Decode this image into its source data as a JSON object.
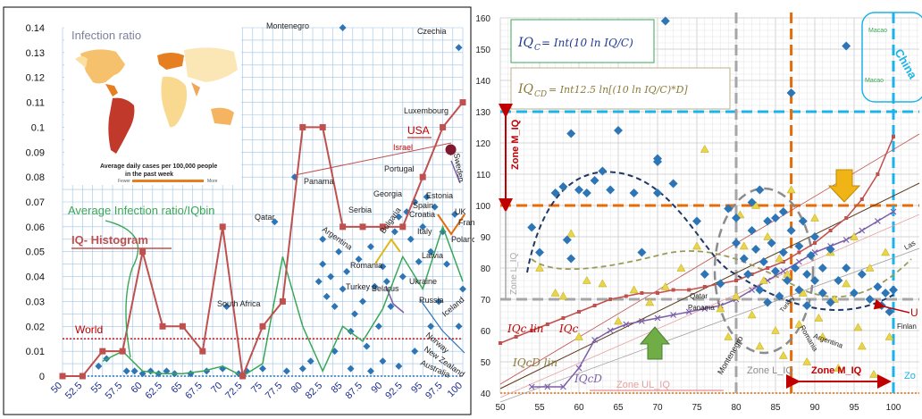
{
  "colors": {
    "iq_histogram": "#c0504d",
    "average_ratio": "#3aa757",
    "points": "#2e75b6",
    "world_line": "#c00000",
    "gold": "#e2b714",
    "orange_dash": "#e46c0a",
    "blue_dash": "#1cb4e8",
    "gray_dash": "#a6a6a6",
    "purple": "#7b5ea7"
  },
  "chart_data": [
    {
      "type": "line",
      "panel": "left",
      "xlim": [
        50,
        100
      ],
      "ylim": [
        0,
        0.14
      ],
      "x_ticks": [
        "50",
        "52.5",
        "55",
        "57.5",
        "60",
        "62.5",
        "65",
        "67.5",
        "70",
        "72.5",
        "75",
        "77.5",
        "80",
        "82.5",
        "85",
        "87.5",
        "90",
        "92.5",
        "95",
        "97.5",
        "100"
      ],
      "y_ticks": [
        "0",
        "0.01",
        "0.02",
        "0.03",
        "0.04",
        "0.05",
        "0.06",
        "0.07",
        "0.08",
        "0.09",
        "0.1",
        "0.11",
        "0.12",
        "0.13",
        "0.14"
      ],
      "grid": true,
      "series": [
        {
          "name": "IQ- Histogram",
          "x": [
            50,
            52.5,
            55,
            57.5,
            60,
            62.5,
            65,
            67.5,
            70,
            72.5,
            75,
            77.5,
            80,
            82.5,
            85,
            87.5,
            90,
            92.5,
            95,
            97.5,
            100
          ],
          "values": [
            0,
            0,
            0.01,
            0.01,
            0.05,
            0.02,
            0.02,
            0.01,
            0.06,
            0,
            0.02,
            0.03,
            0.1,
            0.1,
            0.06,
            0.06,
            0.06,
            0.06,
            0.08,
            0.1,
            0.11
          ]
        },
        {
          "name": "Average Infection ratio/IQbin",
          "x": [
            55,
            57.5,
            60,
            62.5,
            65,
            67.5,
            70,
            72.5,
            75,
            77.5,
            80,
            82.5,
            85,
            87.5,
            90,
            92.5,
            95,
            97.5,
            100
          ],
          "values": [
            0.006,
            0.01,
            0.002,
            0.001,
            0.001,
            0.002,
            0.004,
            0,
            0.005,
            0.048,
            0.02,
            0.002,
            0.02,
            0.014,
            0.027,
            0.048,
            0.035,
            0.06,
            0.038
          ]
        },
        {
          "name": "World",
          "x": [
            50,
            100
          ],
          "values": [
            0.015,
            0.015
          ]
        }
      ],
      "points": [
        {
          "x": 54.5,
          "y": 0.004
        },
        {
          "x": 55.5,
          "y": 0.007
        },
        {
          "x": 58,
          "y": 0.002
        },
        {
          "x": 59,
          "y": 0.002
        },
        {
          "x": 60,
          "y": 0.001
        },
        {
          "x": 61,
          "y": 0.002
        },
        {
          "x": 62,
          "y": 0.001
        },
        {
          "x": 63,
          "y": 0.002
        },
        {
          "x": 64,
          "y": 0.001
        },
        {
          "x": 66,
          "y": 0.001
        },
        {
          "x": 68,
          "y": 0.002
        },
        {
          "x": 70,
          "y": 0.003
        },
        {
          "x": 70.5,
          "y": 0.028
        },
        {
          "x": 72,
          "y": 0.001
        },
        {
          "x": 73,
          "y": 0.002
        },
        {
          "x": 75,
          "y": 0.003
        },
        {
          "x": 76.5,
          "y": 0.062
        },
        {
          "x": 78,
          "y": 0.002
        },
        {
          "x": 79,
          "y": 0.08
        },
        {
          "x": 80,
          "y": 0.003
        },
        {
          "x": 81,
          "y": 0.006
        },
        {
          "x": 82,
          "y": 0.038
        },
        {
          "x": 82.5,
          "y": 0.045
        },
        {
          "x": 83,
          "y": 0.032
        },
        {
          "x": 83.5,
          "y": 0.04
        },
        {
          "x": 84,
          "y": 0.028
        },
        {
          "x": 84.5,
          "y": 0.05
        },
        {
          "x": 85,
          "y": 0.035
        },
        {
          "x": 85.5,
          "y": 0.042
        },
        {
          "x": 86,
          "y": 0.018
        },
        {
          "x": 86.5,
          "y": 0.025
        },
        {
          "x": 87,
          "y": 0.047
        },
        {
          "x": 87.5,
          "y": 0.03
        },
        {
          "x": 88,
          "y": 0.012
        },
        {
          "x": 88.5,
          "y": 0.052
        },
        {
          "x": 89,
          "y": 0.036
        },
        {
          "x": 89.5,
          "y": 0.02
        },
        {
          "x": 90,
          "y": 0.044
        },
        {
          "x": 90.5,
          "y": 0.038
        },
        {
          "x": 91,
          "y": 0.028
        },
        {
          "x": 91.5,
          "y": 0.058
        },
        {
          "x": 92,
          "y": 0.064
        },
        {
          "x": 92.5,
          "y": 0.04
        },
        {
          "x": 93,
          "y": 0.066
        },
        {
          "x": 93.5,
          "y": 0.055
        },
        {
          "x": 94,
          "y": 0.07
        },
        {
          "x": 94.5,
          "y": 0.046
        },
        {
          "x": 95,
          "y": 0.06
        },
        {
          "x": 95.5,
          "y": 0.072
        },
        {
          "x": 96,
          "y": 0.05
        },
        {
          "x": 96.5,
          "y": 0.068
        },
        {
          "x": 97,
          "y": 0.03
        },
        {
          "x": 97.5,
          "y": 0.058
        },
        {
          "x": 98,
          "y": 0.045
        },
        {
          "x": 98.5,
          "y": 0.09
        },
        {
          "x": 99,
          "y": 0.065
        },
        {
          "x": 99.5,
          "y": 0.02
        },
        {
          "x": 100,
          "y": 0.035
        },
        {
          "x": 96,
          "y": 0.02
        },
        {
          "x": 94,
          "y": 0.01
        },
        {
          "x": 92,
          "y": 0.004
        },
        {
          "x": 90,
          "y": 0.006
        },
        {
          "x": 86,
          "y": 0.003
        },
        {
          "x": 84,
          "y": 0.01
        },
        {
          "x": 82.5,
          "y": 0.055
        },
        {
          "x": 88.5,
          "y": 0.002
        },
        {
          "x": 85,
          "y": 0.14
        },
        {
          "x": 99.5,
          "y": 0.132
        }
      ],
      "labels": {
        "map_title": "Infection ratio",
        "map_caption_1": "Average daily cases per 100,000 people",
        "map_caption_2": "in the past week",
        "map_legend_low": "Fewer",
        "map_legend_high": "More",
        "average_label": "Average Infection ratio/IQbin",
        "histogram_label": "IQ- Histogram",
        "world_label": "World",
        "usa_label": "USA",
        "israel_label": "Israel",
        "countries": {
          "montenegro": "Montenegro",
          "czechia": "Czechia",
          "luxembourg": "Luxembourg",
          "sweden": "Sweden",
          "portugal": "Portugal",
          "panama": "Panama",
          "georgia": "Georgia",
          "estonia": "Estonia",
          "spain": "Spain",
          "croatia": "Croatia",
          "uk": "UK",
          "france": "Franc",
          "serbia": "Serbia",
          "qatar": "Qatar",
          "argentina": "Argentina",
          "bulgaria": "Bulgaria",
          "italy": "Italy",
          "poland": "Polanc",
          "latvia": "Latvia",
          "romania": "Romania",
          "turkey": "Turkey",
          "belarus": "Belarus",
          "ukraine": "Ukraine",
          "russia": "Russia",
          "south_africa": "South Africa",
          "iceland": "Iceland",
          "norway": "Norway",
          "new_zealand": "New Zealand",
          "australia": "Australia"
        }
      }
    },
    {
      "type": "scatter",
      "panel": "right",
      "xlim": [
        50,
        100
      ],
      "ylim": [
        40,
        160
      ],
      "x_ticks": [
        "50",
        "55",
        "60",
        "65",
        "70",
        "75",
        "80",
        "85",
        "90",
        "95",
        "100"
      ],
      "y_ticks": [
        "40",
        "50",
        "60",
        "70",
        "80",
        "90",
        "100",
        "110",
        "120",
        "130",
        "140",
        "150",
        "160"
      ],
      "grid": true,
      "series": [
        {
          "name": "IQ_C",
          "x": [
            50,
            52,
            54,
            56,
            58,
            60,
            62,
            64,
            66,
            68,
            70,
            72,
            74,
            76,
            78,
            80,
            82,
            84,
            86,
            88,
            90,
            92,
            94,
            96,
            98,
            100
          ],
          "values": [
            56,
            58,
            60,
            62,
            64,
            66,
            68,
            70,
            71,
            72,
            72,
            73,
            73,
            74,
            75,
            76,
            78,
            80,
            82,
            85,
            88,
            92,
            96,
            102,
            110,
            122
          ]
        },
        {
          "name": "IQ_CD",
          "x": [
            54,
            56,
            58,
            60,
            62,
            64,
            66,
            68,
            70,
            72,
            74,
            76,
            78,
            80,
            82,
            84,
            86,
            88,
            90,
            92,
            94,
            96,
            98,
            100
          ],
          "values": [
            42,
            42,
            42,
            48,
            57,
            60,
            62,
            63,
            64,
            65,
            66,
            67,
            68,
            70,
            73,
            76,
            79,
            82,
            85,
            87,
            89,
            92,
            95,
            98
          ]
        }
      ],
      "blue_points": [
        {
          "x": 54,
          "y": 93
        },
        {
          "x": 55,
          "y": 85
        },
        {
          "x": 57,
          "y": 104
        },
        {
          "x": 58,
          "y": 106
        },
        {
          "x": 58.5,
          "y": 89
        },
        {
          "x": 59,
          "y": 83
        },
        {
          "x": 59,
          "y": 123
        },
        {
          "x": 60,
          "y": 105
        },
        {
          "x": 61,
          "y": 104
        },
        {
          "x": 62,
          "y": 108
        },
        {
          "x": 63,
          "y": 111
        },
        {
          "x": 64,
          "y": 105
        },
        {
          "x": 65,
          "y": 124
        },
        {
          "x": 67,
          "y": 104
        },
        {
          "x": 68,
          "y": 85
        },
        {
          "x": 70,
          "y": 114
        },
        {
          "x": 70,
          "y": 115
        },
        {
          "x": 70,
          "y": 104
        },
        {
          "x": 71,
          "y": 159
        },
        {
          "x": 72,
          "y": 107
        },
        {
          "x": 75,
          "y": 95
        },
        {
          "x": 76,
          "y": 78
        },
        {
          "x": 78,
          "y": 75
        },
        {
          "x": 79,
          "y": 99
        },
        {
          "x": 80,
          "y": 96
        },
        {
          "x": 80,
          "y": 88
        },
        {
          "x": 81,
          "y": 83
        },
        {
          "x": 81.5,
          "y": 78
        },
        {
          "x": 82,
          "y": 101
        },
        {
          "x": 82,
          "y": 92
        },
        {
          "x": 82.5,
          "y": 86
        },
        {
          "x": 83,
          "y": 73
        },
        {
          "x": 83,
          "y": 105
        },
        {
          "x": 83.5,
          "y": 82
        },
        {
          "x": 84,
          "y": 95
        },
        {
          "x": 84,
          "y": 69
        },
        {
          "x": 84.5,
          "y": 88
        },
        {
          "x": 85,
          "y": 79
        },
        {
          "x": 85,
          "y": 96
        },
        {
          "x": 85.5,
          "y": 71
        },
        {
          "x": 86,
          "y": 85
        },
        {
          "x": 86,
          "y": 98
        },
        {
          "x": 86.5,
          "y": 76
        },
        {
          "x": 87,
          "y": 92
        },
        {
          "x": 87,
          "y": 136
        },
        {
          "x": 87.5,
          "y": 80
        },
        {
          "x": 88,
          "y": 73
        },
        {
          "x": 88,
          "y": 87
        },
        {
          "x": 88.5,
          "y": 95
        },
        {
          "x": 89,
          "y": 78
        },
        {
          "x": 89,
          "y": 68
        },
        {
          "x": 89.5,
          "y": 84
        },
        {
          "x": 90,
          "y": 76
        },
        {
          "x": 90,
          "y": 90
        },
        {
          "x": 91,
          "y": 72
        },
        {
          "x": 91,
          "y": 80
        },
        {
          "x": 92,
          "y": 69
        },
        {
          "x": 92,
          "y": 86
        },
        {
          "x": 93,
          "y": 76
        },
        {
          "x": 94,
          "y": 151
        },
        {
          "x": 94,
          "y": 80
        },
        {
          "x": 95,
          "y": 72
        },
        {
          "x": 96,
          "y": 78
        },
        {
          "x": 97,
          "y": 70
        },
        {
          "x": 98,
          "y": 74
        },
        {
          "x": 98.5,
          "y": 68
        },
        {
          "x": 99,
          "y": 72
        },
        {
          "x": 99.5,
          "y": 66
        },
        {
          "x": 100,
          "y": 73
        }
      ],
      "yellow_points": [
        {
          "x": 55,
          "y": 80
        },
        {
          "x": 57,
          "y": 72
        },
        {
          "x": 58,
          "y": 71
        },
        {
          "x": 59,
          "y": 91
        },
        {
          "x": 60,
          "y": 58
        },
        {
          "x": 61,
          "y": 76
        },
        {
          "x": 63,
          "y": 75
        },
        {
          "x": 65,
          "y": 63
        },
        {
          "x": 67,
          "y": 73
        },
        {
          "x": 69,
          "y": 69
        },
        {
          "x": 71,
          "y": 74
        },
        {
          "x": 73,
          "y": 80
        },
        {
          "x": 75,
          "y": 87
        },
        {
          "x": 76,
          "y": 118
        },
        {
          "x": 78,
          "y": 67
        },
        {
          "x": 79,
          "y": 58
        },
        {
          "x": 80,
          "y": 71
        },
        {
          "x": 80.5,
          "y": 97
        },
        {
          "x": 81,
          "y": 87
        },
        {
          "x": 82,
          "y": 65
        },
        {
          "x": 82.5,
          "y": 100
        },
        {
          "x": 83,
          "y": 55
        },
        {
          "x": 83.5,
          "y": 76
        },
        {
          "x": 84,
          "y": 90
        },
        {
          "x": 85,
          "y": 60
        },
        {
          "x": 85.5,
          "y": 83
        },
        {
          "x": 86,
          "y": 52
        },
        {
          "x": 86.5,
          "y": 78
        },
        {
          "x": 87,
          "y": 105
        },
        {
          "x": 88,
          "y": 62
        },
        {
          "x": 88.5,
          "y": 72
        },
        {
          "x": 89,
          "y": 50
        },
        {
          "x": 90,
          "y": 96
        },
        {
          "x": 90.5,
          "y": 64
        },
        {
          "x": 91,
          "y": 58
        },
        {
          "x": 92,
          "y": 85
        },
        {
          "x": 92.5,
          "y": 70
        },
        {
          "x": 93,
          "y": 48
        },
        {
          "x": 94,
          "y": 75
        },
        {
          "x": 95,
          "y": 90
        },
        {
          "x": 95.5,
          "y": 61
        },
        {
          "x": 96,
          "y": 55
        },
        {
          "x": 97,
          "y": 80
        },
        {
          "x": 97.5,
          "y": 46
        },
        {
          "x": 98,
          "y": 68
        },
        {
          "x": 99,
          "y": 85
        },
        {
          "x": 99.5,
          "y": 58
        }
      ],
      "reference_lines": {
        "orange_h": 100,
        "blue_h": 130,
        "gray_h": 70,
        "gray_v": 80,
        "orange_v": 87,
        "blue_v": 100
      },
      "labels": {
        "eq1_lhs": "IQ",
        "eq1_sub": "C",
        "eq1_rhs": "= Int(10 ln IQ/C)",
        "eq2_lhs": "IQ",
        "eq2_sub": "CD",
        "eq2_rhs": "= Int12.5 ln[(10 ln IQ/C)*D]",
        "zone_m_iq_v": "Zone M_IQ",
        "zone_l_iq_v": "Zone L_IQ",
        "zone_ul_iq": "Zone UL_IQ",
        "zone_l_iq": "Zone L_IQ",
        "zone_m_iq": "Zone M_IQ",
        "zone_edge": "Zo",
        "china": "China",
        "macao_1": "Macao",
        "macao_2": "Macao",
        "iqc_lin": "IQc lin",
        "iqc": "IQc",
        "iqcd_lin": "IQcD lin",
        "iqcd": "IQcD",
        "qatar": "Qatar",
        "panama": "Panama",
        "montenegro": "Montenegro",
        "turkey": "Turkey",
        "romania": "Romania",
        "argentina": "Argentina",
        "finland": "Finlan",
        "u_label": "U",
        "l_label": "Las"
      }
    }
  ]
}
